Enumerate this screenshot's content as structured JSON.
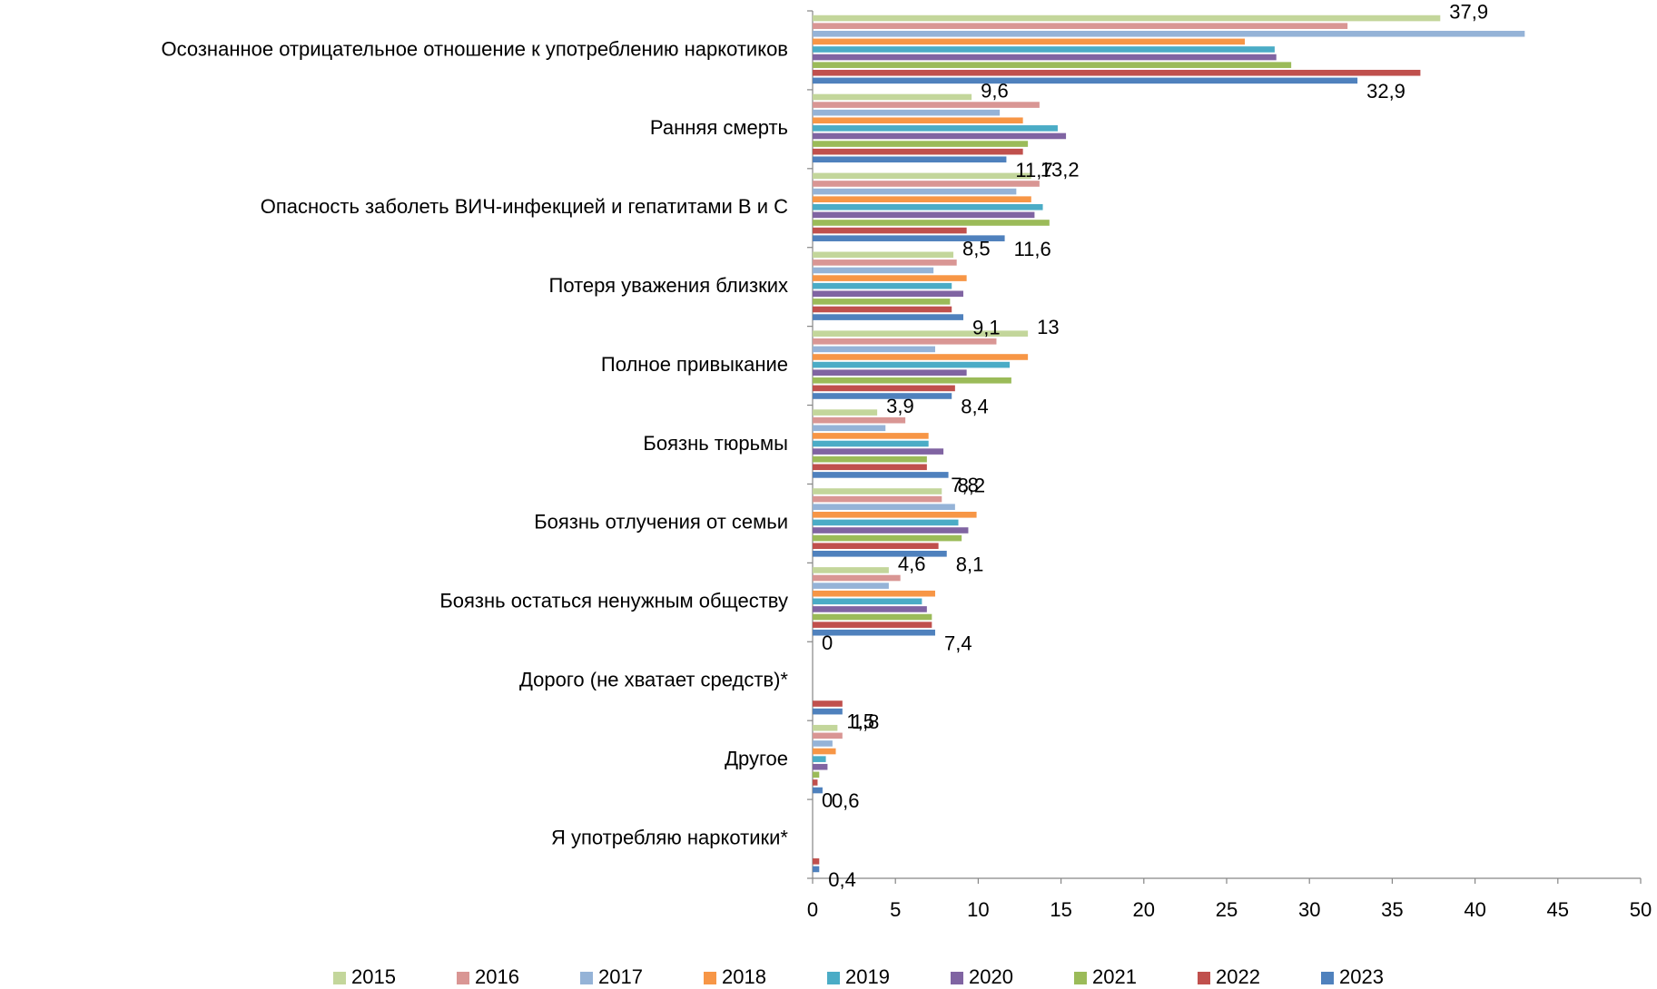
{
  "chart_data": {
    "type": "hbar",
    "categories": [
      "Осознанное отрицательное отношение к употреблению наркотиков",
      "Ранняя смерть",
      "Опасность заболеть ВИЧ-инфекцией и гепатитами В и С",
      "Потеря уважения близких",
      "Полное привыкание",
      "Боязнь тюрьмы",
      "Боязнь отлучения от семьи",
      "Боязнь остаться ненужным обществу",
      "Дорого (не хватает средств)*",
      "Другое",
      "Я употребляю наркотики*"
    ],
    "series": [
      {
        "name": "2015",
        "color": "#c3d69b",
        "values": [
          37.9,
          9.6,
          13.2,
          8.5,
          13,
          3.9,
          7.8,
          4.6,
          0,
          1.5,
          0
        ],
        "value_labels": [
          "37,9",
          "9,6",
          "13,2",
          "8,5",
          "13",
          "3,9",
          "7,8",
          "4,6",
          "0",
          "1,5",
          "0"
        ]
      },
      {
        "name": "2016",
        "color": "#d99694",
        "values": [
          32.3,
          13.7,
          13.7,
          8.7,
          11.1,
          5.6,
          7.8,
          5.3,
          null,
          1.8,
          null
        ]
      },
      {
        "name": "2017",
        "color": "#95b3d7",
        "values": [
          43.0,
          11.3,
          12.3,
          7.3,
          7.4,
          4.4,
          8.6,
          4.6,
          null,
          1.2,
          null
        ]
      },
      {
        "name": "2018",
        "color": "#f79646",
        "values": [
          26.1,
          12.7,
          13.2,
          9.3,
          13.0,
          7.0,
          9.9,
          7.4,
          null,
          1.4,
          null
        ]
      },
      {
        "name": "2019",
        "color": "#4bacc6",
        "values": [
          27.9,
          14.8,
          13.9,
          8.4,
          11.9,
          7.0,
          8.8,
          6.6,
          null,
          0.8,
          null
        ]
      },
      {
        "name": "2020",
        "color": "#8064a2",
        "values": [
          28.0,
          15.3,
          13.4,
          9.1,
          9.3,
          7.9,
          9.4,
          6.9,
          null,
          0.9,
          null
        ]
      },
      {
        "name": "2021",
        "color": "#9bbb59",
        "values": [
          28.9,
          13.0,
          14.3,
          8.3,
          12.0,
          6.9,
          9.0,
          7.2,
          null,
          0.4,
          null
        ]
      },
      {
        "name": "2022",
        "color": "#c0504d",
        "values": [
          36.7,
          12.7,
          9.3,
          8.4,
          8.6,
          6.9,
          7.6,
          7.2,
          1.8,
          0.3,
          0.4
        ]
      },
      {
        "name": "2023",
        "color": "#4f81bd",
        "values": [
          32.9,
          11.7,
          11.6,
          9.1,
          8.4,
          8.2,
          8.1,
          7.4,
          1.8,
          0.6,
          0.4
        ],
        "value_labels": [
          "32,9",
          "11,7",
          "11,6",
          "9,1",
          "8,4",
          "8,2",
          "8,1",
          "7,4",
          "1,8",
          "0,6",
          "0,4"
        ]
      }
    ],
    "xlim": [
      0,
      50
    ],
    "xticks": [
      0,
      5,
      10,
      15,
      20,
      25,
      30,
      35,
      40,
      45,
      50
    ],
    "legend": "bottom"
  }
}
